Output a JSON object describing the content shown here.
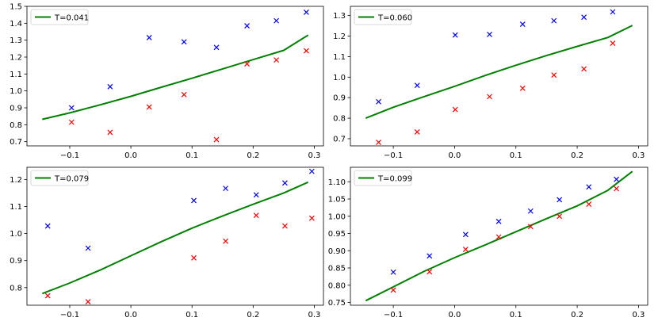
{
  "chart_data": [
    {
      "type": "line",
      "legend": {
        "label": "T=0.041",
        "placement": "top-left"
      },
      "colors": {
        "line": "#008000",
        "blue_marks": "#0000ff",
        "red_marks": "#ff0000"
      },
      "xlim": [
        -0.17,
        0.315
      ],
      "ylim": [
        0.675,
        1.5
      ],
      "xticks": [
        -0.1,
        0.0,
        0.1,
        0.2,
        0.3
      ],
      "xtick_labels": [
        "−0.1",
        "0.0",
        "0.1",
        "0.2",
        "0.3"
      ],
      "yticks": [
        0.7,
        0.8,
        0.9,
        1.0,
        1.1,
        1.2,
        1.3,
        1.4,
        1.5
      ],
      "ytick_labels": [
        "0.7",
        "0.8",
        "0.9",
        "1.0",
        "1.1",
        "1.2",
        "1.3",
        "1.4",
        "1.5"
      ],
      "line": {
        "x": [
          -0.145,
          -0.1,
          -0.05,
          0.0,
          0.05,
          0.1,
          0.15,
          0.2,
          0.25,
          0.29
        ],
        "y": [
          0.832,
          0.87,
          0.918,
          0.968,
          1.022,
          1.075,
          1.13,
          1.185,
          1.24,
          1.33
        ]
      },
      "blue_x": [
        -0.097,
        -0.034,
        0.03,
        0.087,
        0.14,
        0.19,
        0.238,
        0.287
      ],
      "blue_y": [
        0.9,
        1.025,
        1.315,
        1.29,
        1.257,
        1.385,
        1.415,
        1.465
      ],
      "red_x": [
        -0.097,
        -0.034,
        0.03,
        0.087,
        0.14,
        0.19,
        0.238,
        0.287
      ],
      "red_y": [
        0.815,
        0.755,
        0.905,
        0.978,
        0.712,
        1.16,
        1.183,
        1.237
      ]
    },
    {
      "type": "line",
      "legend": {
        "label": "T=0.060",
        "placement": "top-left"
      },
      "colors": {
        "line": "#008000",
        "blue_marks": "#0000ff",
        "red_marks": "#ff0000"
      },
      "xlim": [
        -0.17,
        0.315
      ],
      "ylim": [
        0.665,
        1.345
      ],
      "xticks": [
        -0.1,
        0.0,
        0.1,
        0.2,
        0.3
      ],
      "xtick_labels": [
        "−0.1",
        "0.0",
        "0.1",
        "0.2",
        "0.3"
      ],
      "yticks": [
        0.7,
        0.8,
        0.9,
        1.0,
        1.1,
        1.2,
        1.3
      ],
      "ytick_labels": [
        "0.7",
        "0.8",
        "0.9",
        "1.0",
        "1.1",
        "1.2",
        "1.3"
      ],
      "line": {
        "x": [
          -0.145,
          -0.1,
          -0.05,
          0.0,
          0.05,
          0.1,
          0.15,
          0.2,
          0.25,
          0.29
        ],
        "y": [
          0.8,
          0.853,
          0.905,
          0.955,
          1.008,
          1.058,
          1.105,
          1.15,
          1.193,
          1.252
        ]
      },
      "blue_x": [
        -0.124,
        -0.061,
        0.001,
        0.057,
        0.111,
        0.162,
        0.211,
        0.258
      ],
      "blue_y": [
        0.88,
        0.96,
        1.205,
        1.208,
        1.258,
        1.275,
        1.292,
        1.318
      ],
      "red_x": [
        -0.124,
        -0.061,
        0.001,
        0.057,
        0.111,
        0.162,
        0.211,
        0.258
      ],
      "red_y": [
        0.682,
        0.733,
        0.842,
        0.905,
        0.946,
        1.01,
        1.04,
        1.165
      ]
    },
    {
      "type": "line",
      "legend": {
        "label": "T=0.079",
        "placement": "top-left"
      },
      "colors": {
        "line": "#008000",
        "blue_marks": "#0000ff",
        "red_marks": "#ff0000"
      },
      "xlim": [
        -0.17,
        0.315
      ],
      "ylim": [
        0.735,
        1.245
      ],
      "xticks": [
        -0.1,
        0.0,
        0.1,
        0.2,
        0.3
      ],
      "xtick_labels": [
        "−0.1",
        "0.0",
        "0.1",
        "0.2",
        "0.3"
      ],
      "yticks": [
        0.8,
        0.9,
        1.0,
        1.1,
        1.2
      ],
      "ytick_labels": [
        "0.8",
        "0.9",
        "1.0",
        "1.1",
        "1.2"
      ],
      "line": {
        "x": [
          -0.145,
          -0.1,
          -0.05,
          0.0,
          0.05,
          0.1,
          0.15,
          0.2,
          0.25,
          0.29
        ],
        "y": [
          0.778,
          0.817,
          0.865,
          0.918,
          0.97,
          1.02,
          1.065,
          1.108,
          1.15,
          1.19
        ]
      },
      "blue_x": [
        -0.136,
        -0.07,
        0.103,
        0.155,
        0.205,
        0.252,
        0.296
      ],
      "blue_y": [
        1.028,
        0.946,
        1.122,
        1.167,
        1.143,
        1.187,
        1.23
      ],
      "red_x": [
        -0.136,
        -0.07,
        0.103,
        0.155,
        0.205,
        0.252,
        0.296
      ],
      "red_y": [
        0.77,
        0.748,
        0.91,
        0.972,
        1.067,
        1.028,
        1.057
      ]
    },
    {
      "type": "line",
      "legend": {
        "label": "T=0.099",
        "placement": "top-left"
      },
      "colors": {
        "line": "#008000",
        "blue_marks": "#0000ff",
        "red_marks": "#ff0000"
      },
      "xlim": [
        -0.17,
        0.315
      ],
      "ylim": [
        0.742,
        1.142
      ],
      "xticks": [
        -0.1,
        0.0,
        0.1,
        0.2,
        0.3
      ],
      "xtick_labels": [
        "−0.1",
        "0.0",
        "0.1",
        "0.2",
        "0.3"
      ],
      "yticks": [
        0.75,
        0.8,
        0.85,
        0.9,
        0.95,
        1.0,
        1.05,
        1.1
      ],
      "ytick_labels": [
        "0.75",
        "0.80",
        "0.85",
        "0.90",
        "0.95",
        "1.00",
        "1.05",
        "1.10"
      ],
      "line": {
        "x": [
          -0.145,
          -0.1,
          -0.05,
          0.0,
          0.05,
          0.1,
          0.15,
          0.2,
          0.25,
          0.29
        ],
        "y": [
          0.755,
          0.795,
          0.84,
          0.88,
          0.917,
          0.955,
          0.993,
          1.03,
          1.075,
          1.13
        ]
      },
      "blue_x": [
        -0.1,
        -0.041,
        0.018,
        0.072,
        0.124,
        0.171,
        0.219,
        0.264
      ],
      "blue_y": [
        0.838,
        0.885,
        0.947,
        0.985,
        1.015,
        1.048,
        1.085,
        1.107
      ],
      "red_x": [
        -0.1,
        -0.041,
        0.018,
        0.072,
        0.124,
        0.171,
        0.219,
        0.264
      ],
      "red_y": [
        0.786,
        0.839,
        0.904,
        0.94,
        0.97,
        1.0,
        1.035,
        1.08
      ]
    }
  ]
}
